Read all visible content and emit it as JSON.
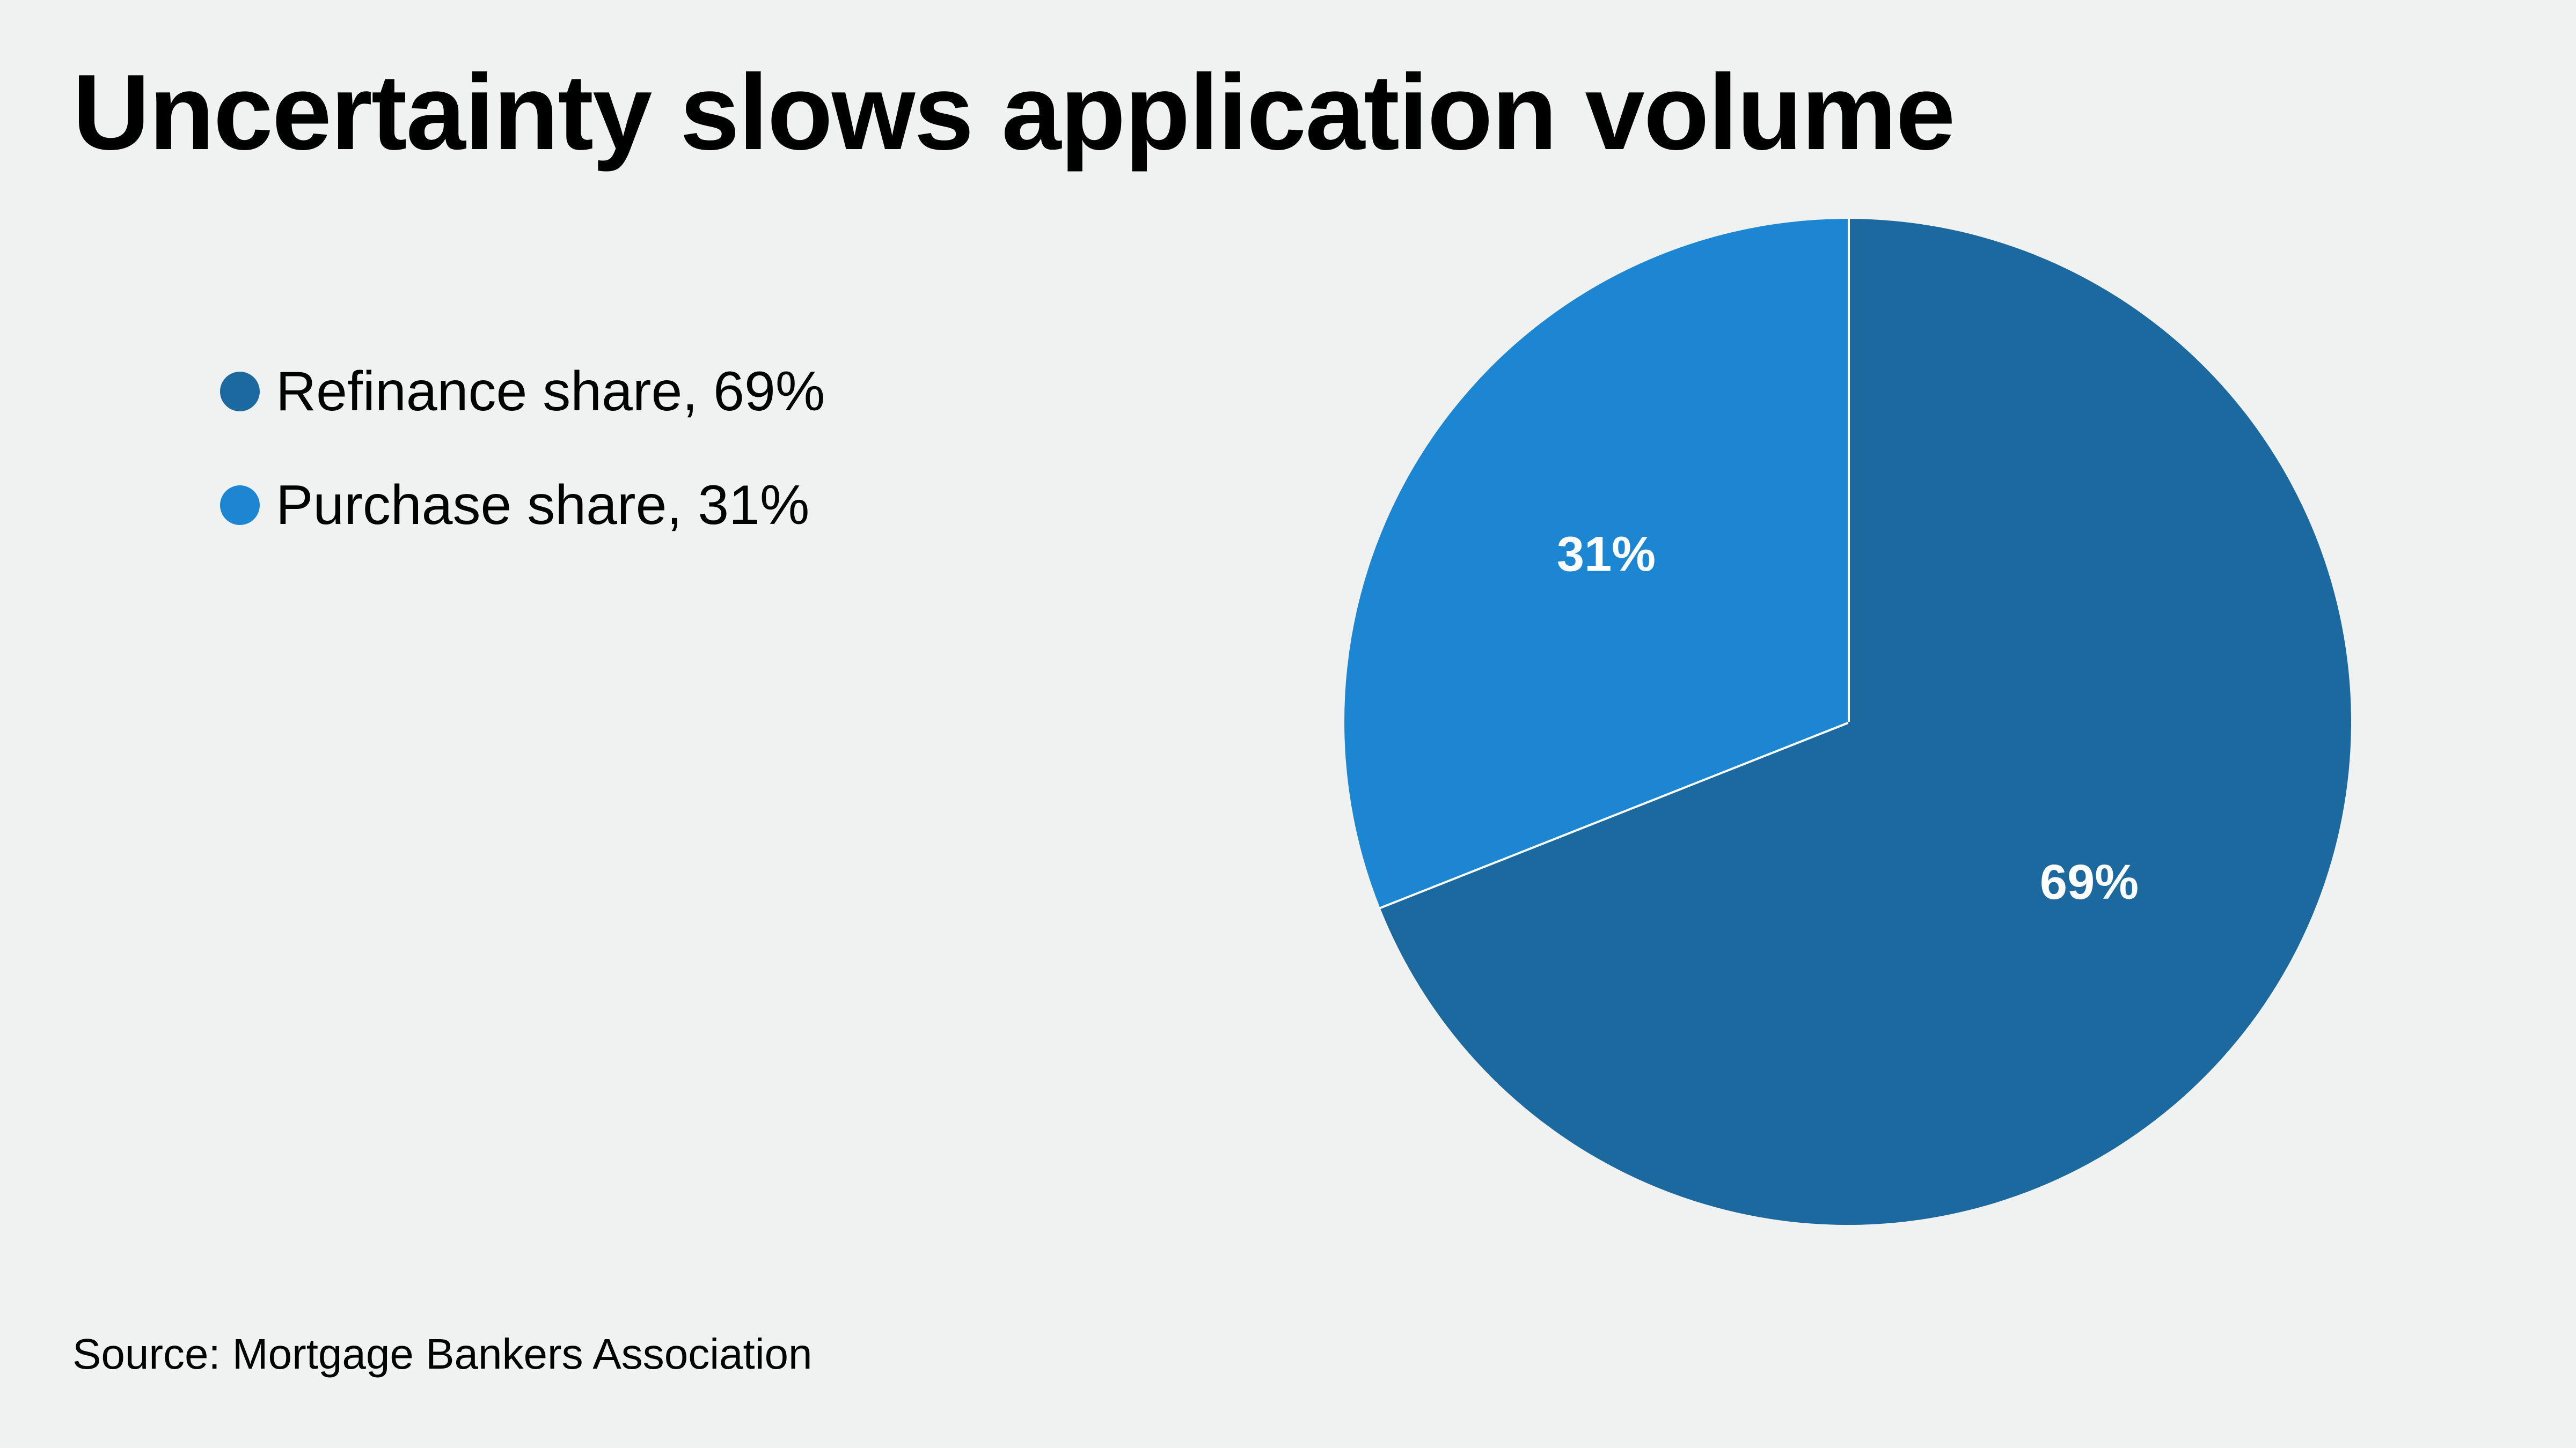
{
  "chart_data": {
    "type": "pie",
    "title": "Uncertainty slows application volume",
    "source": "Source: Mortgage Bankers Association",
    "legend_position": "left",
    "slices": [
      {
        "name": "Refinance share",
        "value": 69,
        "label": "69%",
        "legend_label": "Refinance share, 69%",
        "color": "#1b699f"
      },
      {
        "name": "Purchase share",
        "value": 31,
        "label": "31%",
        "legend_label": "Purchase share, 31%",
        "color": "#1c86d2"
      }
    ],
    "start_angle_deg": 0,
    "direction": "clockwise",
    "slice_separator_color": "#ffffff"
  }
}
